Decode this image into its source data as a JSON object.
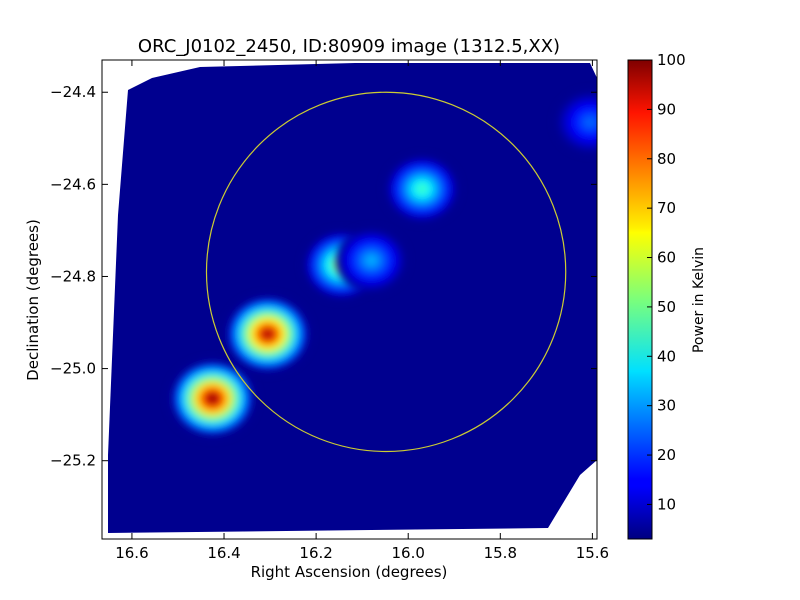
{
  "chart_data": {
    "type": "heatmap",
    "title": "ORC_J0102_2450, ID:80909 image (1312.5,XX)",
    "xlabel": "Right Ascension (degrees)",
    "ylabel": "Declination (degrees)",
    "xlim": [
      16.665,
      15.59
    ],
    "ylim": [
      -25.37,
      -24.33
    ],
    "x_ticks": [
      16.6,
      16.4,
      16.2,
      16.0,
      15.8,
      15.6
    ],
    "x_tick_labels": [
      "16.6",
      "16.4",
      "16.2",
      "16.0",
      "15.8",
      "15.6"
    ],
    "y_ticks": [
      -24.4,
      -24.6,
      -24.8,
      -25.0,
      -25.2
    ],
    "y_tick_labels": [
      "−24.4",
      "−24.6",
      "−24.8",
      "−25.0",
      "−25.2"
    ],
    "colorbar": {
      "label": "Power in Kelvin",
      "range": [
        3,
        100
      ],
      "ticks": [
        10,
        20,
        30,
        40,
        50,
        60,
        70,
        80,
        90,
        100
      ],
      "tick_labels": [
        "10",
        "20",
        "30",
        "40",
        "50",
        "60",
        "70",
        "80",
        "90",
        "100"
      ],
      "colormap": "jet"
    },
    "background_level": 5,
    "sources": [
      {
        "ra": 16.425,
        "dec": -25.065,
        "peak": 98
      },
      {
        "ra": 16.305,
        "dec": -24.925,
        "peak": 95
      },
      {
        "ra": 16.145,
        "dec": -24.775,
        "peak": 55
      },
      {
        "ra": 16.08,
        "dec": -24.765,
        "peak": 32
      },
      {
        "ra": 15.97,
        "dec": -24.61,
        "peak": 45
      },
      {
        "ra": 15.605,
        "dec": -24.465,
        "peak": 25
      }
    ],
    "circle": {
      "ra_center": 16.048,
      "dec_center": -24.79,
      "radius_deg": 0.39,
      "color": "#cccc33"
    },
    "grid": false
  }
}
